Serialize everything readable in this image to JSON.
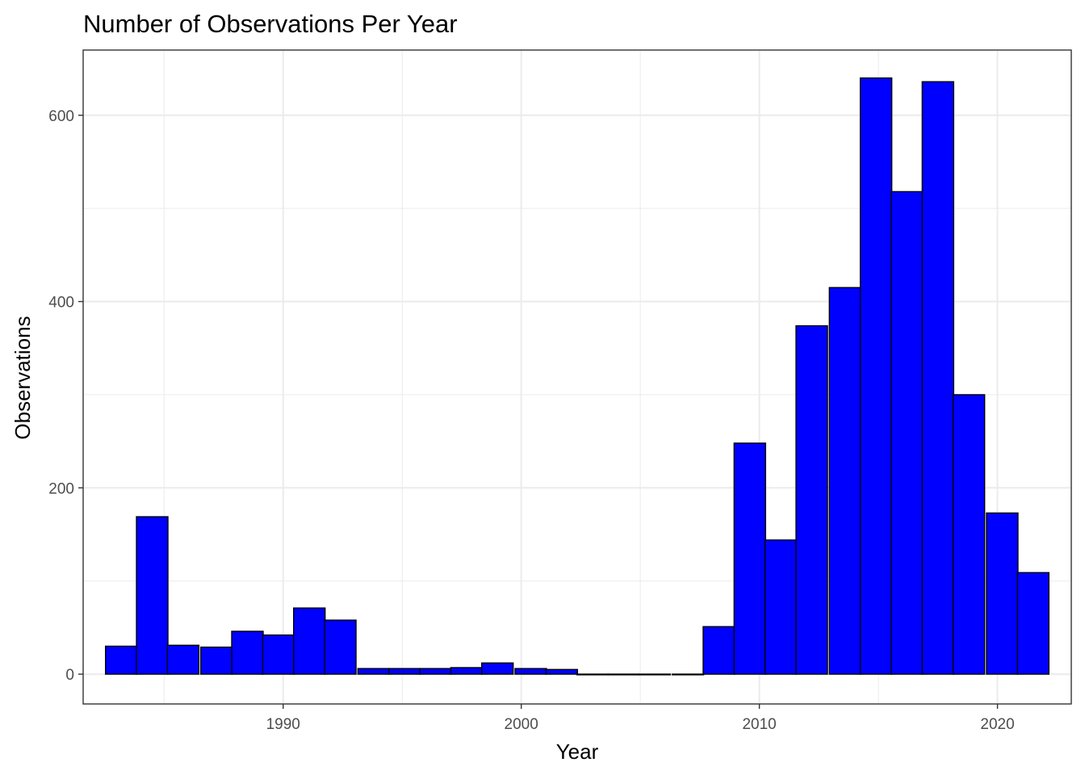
{
  "chart_data": {
    "type": "bar",
    "title": "Number of Observations Per Year",
    "xlabel": "Year",
    "ylabel": "Observations",
    "bin_width": 1.3214,
    "x": [
      1983.2,
      1984.5,
      1985.8,
      1987.2,
      1988.5,
      1989.8,
      1991.1,
      1992.4,
      1993.8,
      1995.1,
      1996.4,
      1997.7,
      1999.0,
      2000.4,
      2001.7,
      2003.0,
      2004.3,
      2005.6,
      2007.0,
      2008.3,
      2009.6,
      2010.9,
      2012.2,
      2013.6,
      2014.9,
      2016.2,
      2017.5,
      2018.8,
      2020.2,
      2021.5
    ],
    "values": [
      30,
      169,
      31,
      29,
      46,
      42,
      71,
      58,
      6,
      6,
      6,
      7,
      12,
      6,
      5,
      0,
      0,
      0,
      0,
      51,
      248,
      144,
      374,
      415,
      640,
      518,
      636,
      300,
      173,
      109
    ],
    "xlim": [
      1981.6,
      2023.1
    ],
    "ylim": [
      -32,
      670
    ],
    "x_ticks": [
      1990,
      2000,
      2010,
      2020
    ],
    "y_ticks": [
      0,
      200,
      400,
      600
    ],
    "x_tick_labels": [
      "1990",
      "2000",
      "2010",
      "2020"
    ],
    "y_tick_labels": [
      "0",
      "200",
      "400",
      "600"
    ],
    "x_minor_ticks": [
      1985,
      1995,
      2005,
      2015
    ],
    "y_minor_ticks": [
      100,
      300,
      500
    ],
    "grid": true,
    "legend": "none",
    "colors": {
      "fill": "#0000ff",
      "stroke": "#000000",
      "grid": "#ebebeb",
      "panel_border": "#333333"
    }
  }
}
